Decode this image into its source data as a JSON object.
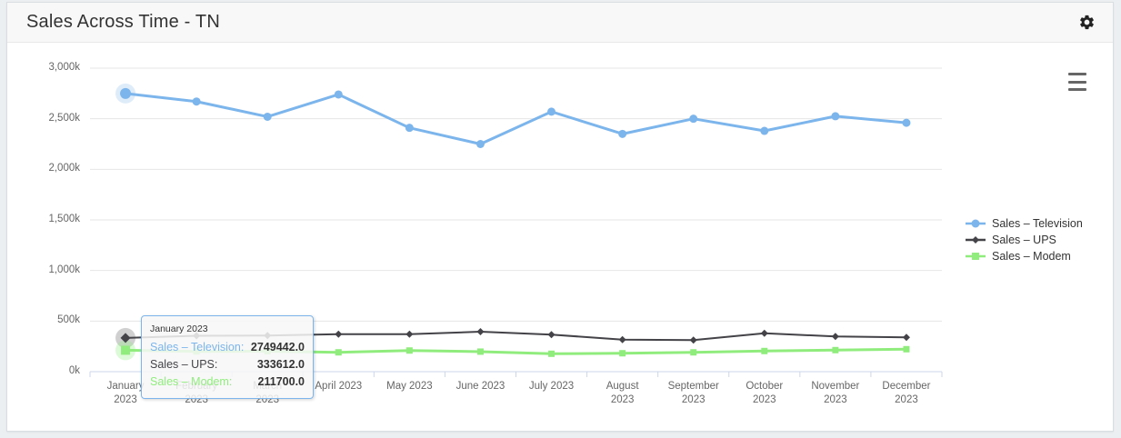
{
  "header": {
    "title": "Sales Across Time - TN"
  },
  "icons": {
    "settings": "gear-icon",
    "context_menu": "hamburger-menu-icon"
  },
  "tooltip": {
    "header": "January 2023",
    "rows": [
      {
        "label": "Sales – Television:",
        "value": "2749442.0",
        "color": "#7cb5ec"
      },
      {
        "label": "Sales – UPS:",
        "value": "333612.0",
        "color": "#434348"
      },
      {
        "label": "Sales – Modem:",
        "value": "211700.0",
        "color": "#90ed7d"
      }
    ]
  },
  "chart_data": {
    "type": "line",
    "title": "Sales Across Time - TN",
    "categories": [
      "January 2023",
      "February 2023",
      "March 2023",
      "April 2023",
      "May 2023",
      "June 2023",
      "July 2023",
      "August 2023",
      "September 2023",
      "October 2023",
      "November 2023",
      "December 2023"
    ],
    "x_tick_labels": [
      "January\n2023",
      "February\n2023",
      "March\n2023",
      "April 2023",
      "May 2023",
      "June 2023",
      "July 2023",
      "August\n2023",
      "September\n2023",
      "October\n2023",
      "November\n2023",
      "December\n2023"
    ],
    "series": [
      {
        "name": "Sales – Television",
        "color": "#7cb5ec",
        "marker": "circle",
        "line_width": 3,
        "values": [
          2749442,
          2670000,
          2520000,
          2740000,
          2410000,
          2250000,
          2570000,
          2350000,
          2500000,
          2380000,
          2525000,
          2460000
        ]
      },
      {
        "name": "Sales – UPS",
        "color": "#434348",
        "marker": "diamond",
        "line_width": 2,
        "values": [
          333612,
          355000,
          357000,
          371000,
          371000,
          395000,
          366000,
          317000,
          312000,
          380000,
          348000,
          339000
        ]
      },
      {
        "name": "Sales – Modem",
        "color": "#90ed7d",
        "marker": "square",
        "line_width": 3,
        "values": [
          211700,
          200000,
          202000,
          191000,
          209000,
          198000,
          177000,
          182000,
          191000,
          204000,
          213000,
          222000
        ]
      }
    ],
    "ylim": [
      0,
      3000000
    ],
    "y_ticks": [
      0,
      500000,
      1000000,
      1500000,
      2000000,
      2500000,
      3000000
    ],
    "y_tick_labels": [
      "0k",
      "500k",
      "1,000k",
      "1,500k",
      "2,000k",
      "2,500k",
      "3,000k"
    ],
    "grid": true,
    "legend_position": "right",
    "hovered_index": 0,
    "grid_color": "#e6e6e6",
    "axis_line_color": "#ccd6eb"
  }
}
